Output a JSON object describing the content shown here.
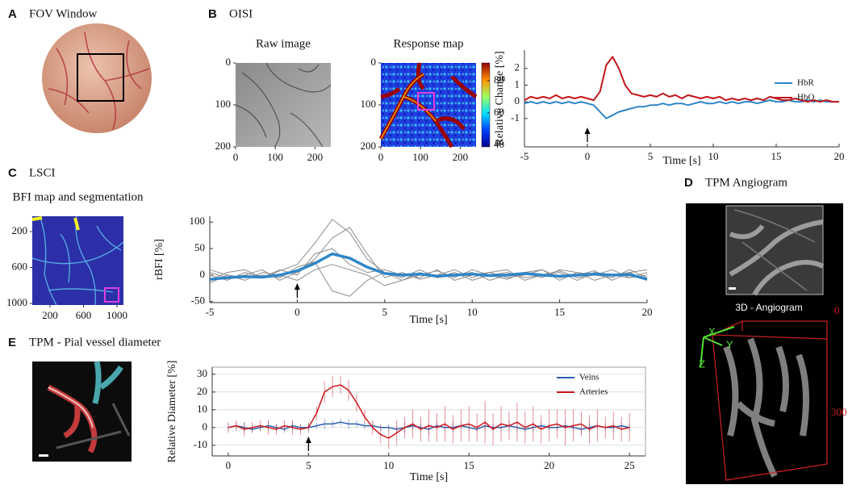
{
  "panels": [
    {
      "letter": "A",
      "title": "FOV Window"
    },
    {
      "letter": "B",
      "title": "OISI"
    },
    {
      "letter": "C",
      "title": "LSCI"
    },
    {
      "letter": "D",
      "title": "TPM Angiogram"
    },
    {
      "letter": "E",
      "title": "TPM - Pial vessel diameter"
    }
  ],
  "angiogram_3d": {
    "title": "3D - Angiogram",
    "axes": [
      "X",
      "Y",
      "Z"
    ],
    "depth_ticks": [
      0,
      300
    ]
  },
  "chart_data": [
    {
      "type": "image",
      "title": "Raw image",
      "xlim": [
        0,
        240
      ],
      "ylim": [
        0,
        200
      ],
      "xticks": [
        0,
        100,
        200
      ],
      "yticks": [
        0,
        100,
        200
      ]
    },
    {
      "type": "image",
      "title": "Response map",
      "xlim": [
        0,
        240
      ],
      "ylim": [
        0,
        200
      ],
      "xticks": [
        0,
        100,
        200
      ],
      "yticks": [
        0,
        100,
        200
      ],
      "colorbar": {
        "lim": [
          39,
          91
        ],
        "ticks": [
          40,
          60,
          80
        ]
      }
    },
    {
      "type": "line",
      "ylabel": "Relative Change [%]",
      "xlabel": "Time  [s]",
      "xlim": [
        -5,
        20
      ],
      "ylim": [
        -2.7,
        3.1
      ],
      "xticks": [
        -5,
        0,
        5,
        10,
        15,
        20
      ],
      "yticks": [
        -1,
        0,
        1,
        2
      ],
      "legend": "upper right",
      "stimulus": 0,
      "x": [
        -5,
        -4.5,
        -4,
        -3.5,
        -3,
        -2.5,
        -2,
        -1.5,
        -1,
        -0.5,
        0,
        0.5,
        1,
        1.5,
        2,
        2.5,
        3,
        3.5,
        4,
        4.5,
        5,
        5.5,
        6,
        6.5,
        7,
        7.5,
        8,
        8.5,
        9,
        9.5,
        10,
        10.5,
        11,
        11.5,
        12,
        12.5,
        13,
        13.5,
        14,
        14.5,
        15,
        15.5,
        16,
        16.5,
        17,
        17.5,
        18,
        18.5,
        19,
        19.5,
        20
      ],
      "series": [
        {
          "name": "HbR",
          "color": "#2f86c8",
          "line_width": 2,
          "values": [
            -0.1,
            0,
            -0.1,
            0,
            -0.1,
            0,
            -0.1,
            0,
            -0.1,
            0,
            -0.1,
            -0.2,
            -0.6,
            -1.0,
            -0.8,
            -0.6,
            -0.5,
            -0.4,
            -0.3,
            -0.3,
            -0.2,
            -0.2,
            -0.1,
            -0.2,
            -0.1,
            -0.1,
            -0.2,
            -0.1,
            0,
            -0.1,
            -0.1,
            0,
            -0.1,
            0,
            -0.1,
            0,
            0,
            -0.1,
            0,
            0.1,
            0,
            0,
            0.1,
            0,
            0,
            0.1,
            0,
            0.1,
            0,
            0,
            0
          ]
        },
        {
          "name": "HbO",
          "color": "#c3161c",
          "line_width": 2,
          "values": [
            0.1,
            0.3,
            0.2,
            0.3,
            0.2,
            0.4,
            0.2,
            0.3,
            0.2,
            0.3,
            0.2,
            0.1,
            0.6,
            2.2,
            2.7,
            2.0,
            1.0,
            0.5,
            0.4,
            0.3,
            0.4,
            0.3,
            0.5,
            0.3,
            0.4,
            0.2,
            0.4,
            0.3,
            0.2,
            0.3,
            0.2,
            0.3,
            0.1,
            0.2,
            0.1,
            0.2,
            0.1,
            0.2,
            0.1,
            0.3,
            0.2,
            0.1,
            0.1,
            0.2,
            0.1,
            0,
            0.1,
            0,
            0.1,
            0,
            0
          ]
        }
      ]
    },
    {
      "type": "image",
      "title": "BFI map and segmentation",
      "xlim": [
        -12,
        1077
      ],
      "ylim": [
        29,
        1018
      ],
      "xticks": [
        200,
        600,
        1000
      ],
      "yticks": [
        200,
        600,
        1000
      ]
    },
    {
      "type": "line",
      "ylabel": "rBFI [%]",
      "xlabel": "Time  [s]",
      "xlim": [
        -5,
        20
      ],
      "ylim": [
        -52,
        111
      ],
      "xticks": [
        -5,
        0,
        5,
        10,
        15,
        20
      ],
      "yticks": [
        -50,
        0,
        50,
        100
      ],
      "stimulus": 0,
      "x": [
        -5,
        -4,
        -3,
        -2,
        -1,
        0,
        1,
        2,
        3,
        4,
        5,
        6,
        7,
        8,
        9,
        10,
        11,
        12,
        13,
        14,
        15,
        16,
        17,
        18,
        19,
        20
      ],
      "series": [
        {
          "color": "#8c8c8c",
          "line_width": 1,
          "values": [
            -10,
            5,
            10,
            -5,
            8,
            20,
            60,
            105,
            80,
            30,
            5,
            -10,
            0,
            8,
            -5,
            10,
            0,
            -8,
            5,
            10,
            -5,
            0,
            8,
            -10,
            5,
            -10
          ]
        },
        {
          "color": "#8c8c8c",
          "line_width": 1,
          "values": [
            5,
            -5,
            0,
            10,
            -10,
            5,
            30,
            70,
            90,
            40,
            -5,
            5,
            -8,
            0,
            10,
            -5,
            5,
            10,
            -10,
            0,
            8,
            -5,
            0,
            10,
            -5,
            0
          ]
        },
        {
          "color": "#8c8c8c",
          "line_width": 1,
          "values": [
            -15,
            0,
            -10,
            5,
            0,
            -10,
            10,
            20,
            10,
            0,
            -20,
            -10,
            5,
            -5,
            0,
            5,
            -10,
            0,
            5,
            -5,
            10,
            5,
            -10,
            0,
            5,
            10
          ]
        },
        {
          "color": "#8c8c8c",
          "line_width": 1,
          "values": [
            0,
            -10,
            5,
            -5,
            10,
            0,
            40,
            50,
            20,
            5,
            10,
            0,
            -5,
            10,
            -10,
            0,
            5,
            -5,
            0,
            10,
            -10,
            5,
            0,
            -5,
            10,
            -5
          ]
        },
        {
          "color": "#8c8c8c",
          "line_width": 1,
          "values": [
            10,
            0,
            -5,
            0,
            -5,
            15,
            25,
            -30,
            -40,
            -10,
            5,
            -5,
            10,
            -5,
            5,
            -10,
            0,
            5,
            -5,
            0,
            5,
            -10,
            5,
            0,
            -5,
            5
          ]
        },
        {
          "color": "#2f86c8",
          "line_width": 3.5,
          "values": [
            -8,
            -5,
            -3,
            -4,
            0,
            8,
            22,
            40,
            32,
            15,
            3,
            0,
            2,
            -2,
            0,
            2,
            -1,
            0,
            3,
            0,
            -2,
            0,
            2,
            0,
            1,
            -8
          ]
        }
      ]
    },
    {
      "type": "line",
      "ylabel": "Relative Diameter [%]",
      "xlabel": "Time [s]",
      "xlim": [
        -1,
        26
      ],
      "ylim": [
        -16,
        34
      ],
      "xticks": [
        0,
        5,
        10,
        15,
        20,
        25
      ],
      "yticks": [
        -10,
        0,
        10,
        20,
        30
      ],
      "grid": true,
      "legend": "upper right",
      "stimulus": 5,
      "x": [
        0,
        0.5,
        1,
        1.5,
        2,
        2.5,
        3,
        3.5,
        4,
        4.5,
        5,
        5.5,
        6,
        6.5,
        7,
        7.5,
        8,
        8.5,
        9,
        9.5,
        10,
        10.5,
        11,
        11.5,
        12,
        12.5,
        13,
        13.5,
        14,
        14.5,
        15,
        15.5,
        16,
        16.5,
        17,
        17.5,
        18,
        18.5,
        19,
        19.5,
        20,
        20.5,
        21,
        21.5,
        22,
        22.5,
        23,
        23.5,
        24,
        24.5,
        25
      ],
      "series": [
        {
          "name": "Veins",
          "color": "#2a5fb0",
          "line_width": 1.5,
          "values": [
            0,
            1,
            0,
            -1,
            0,
            1,
            0,
            -1,
            1,
            0,
            0,
            1,
            2,
            2,
            3,
            2,
            2,
            1,
            1,
            0,
            0,
            -1,
            0,
            1,
            0,
            -1,
            1,
            0,
            0,
            1,
            0,
            -1,
            1,
            0,
            0,
            1,
            0,
            -1,
            0,
            1,
            0,
            0,
            1,
            0,
            -1,
            0,
            1,
            0,
            0,
            1,
            0
          ],
          "errors": [
            2,
            2,
            3,
            2,
            2,
            3,
            2,
            2,
            3,
            2,
            2,
            2,
            3,
            2,
            2,
            3,
            2,
            2,
            3,
            2,
            2,
            2,
            3,
            2,
            2,
            3,
            2,
            2,
            3,
            2,
            2,
            2,
            3,
            2,
            2,
            3,
            2,
            2,
            3,
            2,
            2,
            2,
            3,
            2,
            2,
            3,
            2,
            2,
            3,
            2,
            2
          ]
        },
        {
          "name": "Arteries",
          "color": "#d0161c",
          "line_width": 1.5,
          "values": [
            0,
            1,
            -1,
            0,
            1,
            0,
            -1,
            1,
            0,
            -1,
            0,
            8,
            20,
            23,
            24,
            21,
            14,
            6,
            0,
            -4,
            -6,
            -3,
            0,
            2,
            -1,
            1,
            0,
            2,
            -1,
            1,
            2,
            0,
            3,
            -1,
            2,
            1,
            3,
            0,
            2,
            -1,
            1,
            2,
            0,
            1,
            2,
            -1,
            1,
            0,
            1,
            -1,
            0
          ],
          "errors": [
            3,
            3,
            4,
            3,
            3,
            4,
            3,
            3,
            4,
            3,
            3,
            4,
            6,
            6,
            5,
            6,
            5,
            4,
            4,
            5,
            6,
            7,
            6,
            8,
            7,
            9,
            8,
            10,
            8,
            9,
            10,
            8,
            12,
            9,
            10,
            8,
            11,
            9,
            10,
            8,
            9,
            8,
            10,
            9,
            7,
            8,
            9,
            6,
            8,
            7,
            8
          ]
        }
      ]
    }
  ]
}
